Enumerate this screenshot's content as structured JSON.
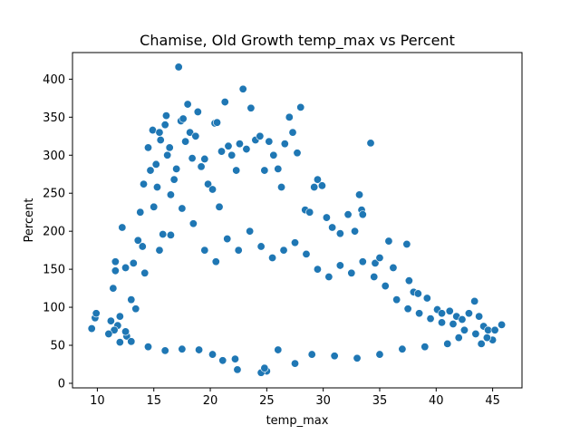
{
  "chart_data": {
    "type": "scatter",
    "title": "Chamise, Old Growth temp_max vs Percent",
    "xlabel": "temp_max",
    "ylabel": "Percent",
    "xlim": [
      7.8,
      47.6
    ],
    "ylim": [
      -6,
      435
    ],
    "x_ticks": [
      10,
      15,
      20,
      25,
      30,
      35,
      40,
      45
    ],
    "y_ticks": [
      0,
      50,
      100,
      150,
      200,
      250,
      300,
      350,
      400
    ],
    "grid": false,
    "legend": "none",
    "marker_color": "#1f77b4",
    "marker_edge_color": "#ffffff",
    "points": [
      [
        9.5,
        72
      ],
      [
        9.8,
        86
      ],
      [
        9.9,
        92
      ],
      [
        11.2,
        82
      ],
      [
        11.4,
        125
      ],
      [
        11.6,
        160
      ],
      [
        11.6,
        148
      ],
      [
        11.8,
        76
      ],
      [
        12.0,
        54
      ],
      [
        12.2,
        205
      ],
      [
        12.5,
        152
      ],
      [
        12.6,
        62
      ],
      [
        13.0,
        110
      ],
      [
        13.2,
        158
      ],
      [
        13.4,
        98
      ],
      [
        13.6,
        188
      ],
      [
        13.8,
        225
      ],
      [
        14.0,
        180
      ],
      [
        14.1,
        262
      ],
      [
        14.2,
        145
      ],
      [
        14.5,
        310
      ],
      [
        14.7,
        280
      ],
      [
        14.9,
        333
      ],
      [
        15.0,
        232
      ],
      [
        15.2,
        288
      ],
      [
        15.3,
        258
      ],
      [
        15.5,
        330
      ],
      [
        15.6,
        320
      ],
      [
        15.8,
        196
      ],
      [
        16.0,
        340
      ],
      [
        16.1,
        352
      ],
      [
        16.2,
        300
      ],
      [
        16.4,
        310
      ],
      [
        16.5,
        248
      ],
      [
        16.8,
        268
      ],
      [
        17.0,
        282
      ],
      [
        17.2,
        416
      ],
      [
        17.4,
        345
      ],
      [
        17.6,
        348
      ],
      [
        17.8,
        318
      ],
      [
        18.0,
        367
      ],
      [
        18.2,
        330
      ],
      [
        18.4,
        296
      ],
      [
        18.7,
        325
      ],
      [
        18.9,
        357
      ],
      [
        19.2,
        285
      ],
      [
        19.5,
        295
      ],
      [
        19.8,
        262
      ],
      [
        20.2,
        255
      ],
      [
        20.4,
        342
      ],
      [
        20.6,
        343
      ],
      [
        20.8,
        232
      ],
      [
        21.0,
        305
      ],
      [
        21.3,
        370
      ],
      [
        21.6,
        312
      ],
      [
        21.9,
        300
      ],
      [
        22.3,
        280
      ],
      [
        22.6,
        315
      ],
      [
        22.9,
        387
      ],
      [
        23.2,
        308
      ],
      [
        23.6,
        362
      ],
      [
        24.0,
        320
      ],
      [
        24.4,
        325
      ],
      [
        24.8,
        280
      ],
      [
        25.2,
        318
      ],
      [
        25.6,
        300
      ],
      [
        26.0,
        282
      ],
      [
        26.3,
        258
      ],
      [
        26.6,
        315
      ],
      [
        27.0,
        350
      ],
      [
        27.3,
        330
      ],
      [
        27.7,
        303
      ],
      [
        28.0,
        363
      ],
      [
        28.4,
        228
      ],
      [
        28.8,
        225
      ],
      [
        29.2,
        258
      ],
      [
        29.5,
        268
      ],
      [
        29.9,
        260
      ],
      [
        30.3,
        218
      ],
      [
        30.8,
        205
      ],
      [
        31.5,
        197
      ],
      [
        32.2,
        222
      ],
      [
        32.8,
        200
      ],
      [
        33.2,
        248
      ],
      [
        33.4,
        228
      ],
      [
        33.5,
        222
      ],
      [
        34.2,
        316
      ],
      [
        34.6,
        158
      ],
      [
        35.0,
        165
      ],
      [
        35.8,
        187
      ],
      [
        36.2,
        152
      ],
      [
        37.4,
        183
      ],
      [
        37.6,
        135
      ],
      [
        38.0,
        120
      ],
      [
        38.4,
        118
      ],
      [
        39.2,
        112
      ],
      [
        40.1,
        97
      ],
      [
        40.5,
        92
      ],
      [
        41.2,
        95
      ],
      [
        41.8,
        88
      ],
      [
        42.3,
        84
      ],
      [
        42.9,
        92
      ],
      [
        43.4,
        108
      ],
      [
        43.8,
        88
      ],
      [
        44.2,
        75
      ],
      [
        44.6,
        70
      ],
      [
        45.0,
        57
      ],
      [
        45.2,
        70
      ],
      [
        45.8,
        77
      ],
      [
        44.0,
        52
      ],
      [
        42.0,
        60
      ],
      [
        41.0,
        52
      ],
      [
        39.0,
        48
      ],
      [
        37.0,
        45
      ],
      [
        35.0,
        38
      ],
      [
        33.0,
        33
      ],
      [
        31.0,
        36
      ],
      [
        29.0,
        38
      ],
      [
        27.5,
        26
      ],
      [
        26.0,
        44
      ],
      [
        25.0,
        16
      ],
      [
        24.5,
        14
      ],
      [
        24.8,
        20
      ],
      [
        22.4,
        18
      ],
      [
        22.2,
        32
      ],
      [
        21.1,
        30
      ],
      [
        20.2,
        38
      ],
      [
        19.0,
        44
      ],
      [
        17.5,
        45
      ],
      [
        16.0,
        43
      ],
      [
        14.5,
        48
      ],
      [
        13.0,
        55
      ],
      [
        12.5,
        68
      ],
      [
        12.0,
        88
      ],
      [
        11.5,
        70
      ],
      [
        11.0,
        65
      ],
      [
        20.5,
        160
      ],
      [
        19.5,
        175
      ],
      [
        18.5,
        210
      ],
      [
        17.5,
        230
      ],
      [
        16.5,
        195
      ],
      [
        15.5,
        175
      ],
      [
        21.5,
        190
      ],
      [
        22.5,
        175
      ],
      [
        23.5,
        200
      ],
      [
        24.5,
        180
      ],
      [
        25.5,
        165
      ],
      [
        26.5,
        175
      ],
      [
        27.5,
        185
      ],
      [
        28.5,
        170
      ],
      [
        29.5,
        150
      ],
      [
        30.5,
        140
      ],
      [
        31.5,
        155
      ],
      [
        32.5,
        145
      ],
      [
        33.5,
        160
      ],
      [
        34.5,
        140
      ],
      [
        35.5,
        128
      ],
      [
        36.5,
        110
      ],
      [
        37.5,
        98
      ],
      [
        38.5,
        92
      ],
      [
        39.5,
        85
      ],
      [
        40.5,
        80
      ],
      [
        41.5,
        78
      ],
      [
        42.5,
        70
      ],
      [
        43.5,
        65
      ],
      [
        44.5,
        60
      ]
    ]
  }
}
